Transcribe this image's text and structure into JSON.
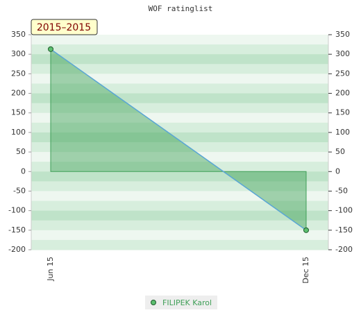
{
  "chart_data": {
    "type": "area",
    "title": "WOF ratinglist",
    "badge": "2015–2015",
    "categories": [
      "Jun 15",
      "Dec 15"
    ],
    "series": [
      {
        "name": "FILIPEK Karol",
        "color": "#3f9f57",
        "values": [
          313,
          -150
        ]
      }
    ],
    "ylim": [
      -200,
      350
    ],
    "yticks": [
      -200,
      -150,
      -100,
      -50,
      0,
      50,
      100,
      150,
      200,
      250,
      300,
      350
    ],
    "y2lim": [
      -200,
      350
    ],
    "y2ticks": [
      -200,
      -150,
      -100,
      -50,
      0,
      50,
      100,
      150,
      200,
      250,
      300,
      350
    ],
    "grid": true,
    "legend": "bottom"
  }
}
